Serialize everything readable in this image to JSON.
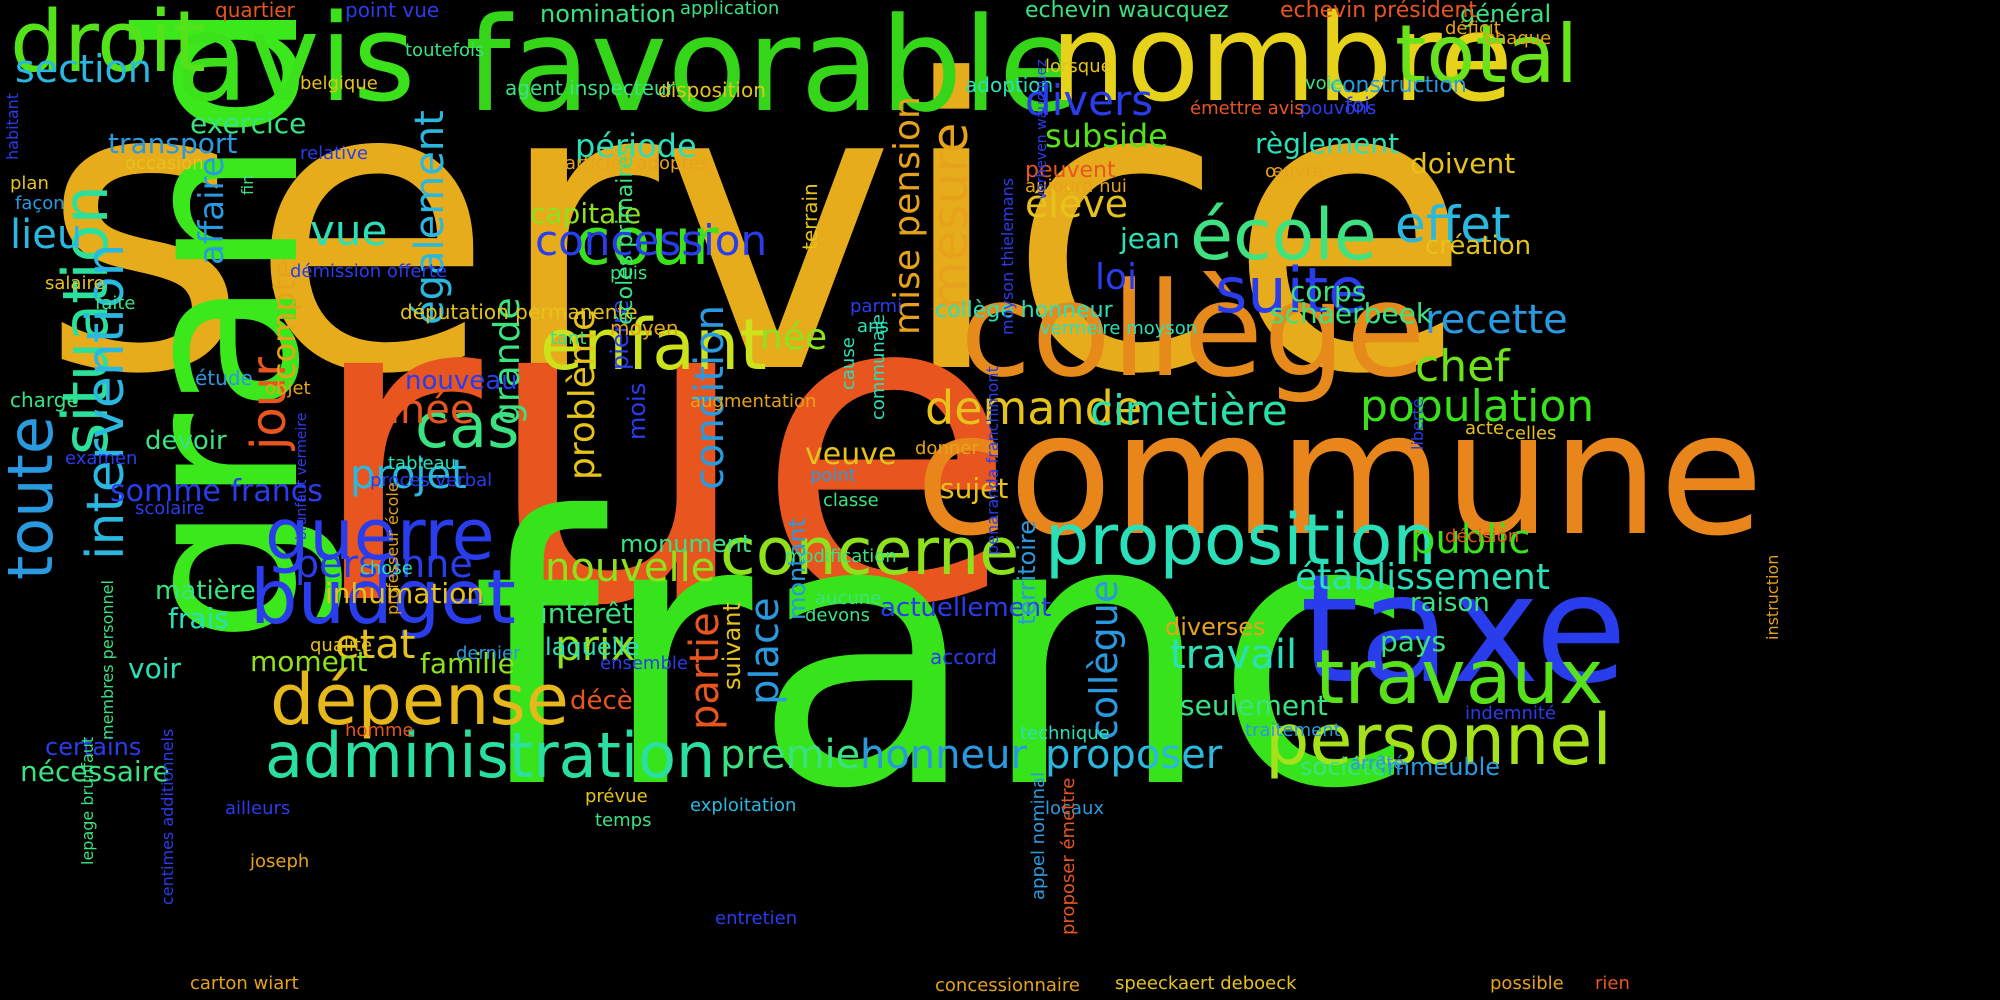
{
  "word_cloud": {
    "words": [
      {
        "text": "service",
        "color": "#e6ac1c"
      },
      {
        "text": "rue",
        "color": "#e8551f"
      },
      {
        "text": "franc",
        "color": "#37e31b"
      },
      {
        "text": "commune",
        "color": "#e8861b"
      },
      {
        "text": "grand",
        "color": "#3ae81c"
      },
      {
        "text": "favorable",
        "color": "#35d61a"
      },
      {
        "text": "avis",
        "color": "#3be21b"
      },
      {
        "text": "nombre",
        "color": "#e6d21b"
      },
      {
        "text": "collège",
        "color": "#e68a1b"
      },
      {
        "text": "taxe",
        "color": "#2a3ded"
      },
      {
        "text": "toute",
        "color": "#2a9ae0"
      },
      {
        "text": "droit",
        "color": "#54e21b"
      },
      {
        "text": "total",
        "color": "#67e21b"
      },
      {
        "text": "personnel",
        "color": "#a6e21b"
      },
      {
        "text": "travaux",
        "color": "#58e21b"
      },
      {
        "text": "proposition",
        "color": "#2ae0b8"
      },
      {
        "text": "administration",
        "color": "#2ae0a0"
      },
      {
        "text": "situation",
        "color": "#2ae09a"
      },
      {
        "text": "intervention",
        "color": "#2ab8e0"
      },
      {
        "text": "dépense",
        "color": "#e6b81b"
      },
      {
        "text": "budget",
        "color": "#2a3ded"
      },
      {
        "text": "enfant",
        "color": "#cce21b"
      },
      {
        "text": "concerne",
        "color": "#8ee21b"
      },
      {
        "text": "école",
        "color": "#3ee280"
      },
      {
        "text": "suite",
        "color": "#2a3ded"
      },
      {
        "text": "guerre",
        "color": "#2a3ded"
      },
      {
        "text": "cour",
        "color": "#3ae21b"
      },
      {
        "text": "cas",
        "color": "#3ae280"
      },
      {
        "text": "jour",
        "color": "#e8551f"
      },
      {
        "text": "concession",
        "color": "#2a3ded"
      },
      {
        "text": "mesure",
        "color": "#e6a21b"
      },
      {
        "text": "demande",
        "color": "#e6c21b"
      },
      {
        "text": "cimetière",
        "color": "#2ae0a8"
      },
      {
        "text": "population",
        "color": "#3ae21b"
      },
      {
        "text": "effet",
        "color": "#2ab8e0"
      },
      {
        "text": "recette",
        "color": "#2a9ae0"
      },
      {
        "text": "chef",
        "color": "#6ee21b"
      },
      {
        "text": "section",
        "color": "#2ab8e0"
      },
      {
        "text": "divers",
        "color": "#2a3ded"
      },
      {
        "text": "élève",
        "color": "#e6c21b"
      },
      {
        "text": "subside",
        "color": "#54e21b"
      },
      {
        "text": "également",
        "color": "#2ab8e0"
      },
      {
        "text": "affaire",
        "color": "#2a9ae0"
      },
      {
        "text": "lieu",
        "color": "#2ab8e0"
      },
      {
        "text": "vue",
        "color": "#2ae0b8"
      },
      {
        "text": "période",
        "color": "#2ae0b8"
      },
      {
        "text": "capitale",
        "color": "#8ee21b"
      },
      {
        "text": "mise pension",
        "color": "#e6a21b"
      },
      {
        "text": "année",
        "color": "#e8551f"
      },
      {
        "text": "projet",
        "color": "#2ab8e0"
      },
      {
        "text": "problème",
        "color": "#e6c21b"
      },
      {
        "text": "condition",
        "color": "#2a9ae0"
      },
      {
        "text": "grande",
        "color": "#3ae280"
      },
      {
        "text": "compte",
        "color": "#e6a21b"
      },
      {
        "text": "personne",
        "color": "#2a3ded"
      },
      {
        "text": "nouvelle",
        "color": "#8ee21b"
      },
      {
        "text": "prix",
        "color": "#8ee21b"
      },
      {
        "text": "etat",
        "color": "#e6c21b"
      },
      {
        "text": "place",
        "color": "#2a9ae0"
      },
      {
        "text": "partie",
        "color": "#e8551f"
      },
      {
        "text": "premier",
        "color": "#3ae280"
      },
      {
        "text": "honneur",
        "color": "#2a9ae0"
      },
      {
        "text": "proposer",
        "color": "#2ab8e0"
      },
      {
        "text": "travail",
        "color": "#2ae0b8"
      },
      {
        "text": "collègue",
        "color": "#2a9ae0"
      },
      {
        "text": "établissement",
        "color": "#2ae0b8"
      },
      {
        "text": "public",
        "color": "#3ae21b"
      },
      {
        "text": "somme francs",
        "color": "#2a3ded"
      },
      {
        "text": "loi",
        "color": "#2a3ded"
      },
      {
        "text": "jean",
        "color": "#2ae0b8"
      },
      {
        "text": "corps",
        "color": "#3ae280"
      },
      {
        "text": "schaerbeek",
        "color": "#3ae280"
      },
      {
        "text": "création",
        "color": "#e6c21b"
      },
      {
        "text": "doivent",
        "color": "#e6c21b"
      },
      {
        "text": "règlement",
        "color": "#2ae0b8"
      },
      {
        "text": "veuve",
        "color": "#e6c21b"
      },
      {
        "text": "sujet",
        "color": "#e6c21b"
      },
      {
        "text": "née",
        "color": "#8ee21b"
      },
      {
        "text": "inhumation",
        "color": "#e6c21b"
      },
      {
        "text": "famille",
        "color": "#8ee21b"
      },
      {
        "text": "moment",
        "color": "#8ee21b"
      },
      {
        "text": "matière",
        "color": "#3ae280"
      },
      {
        "text": "frais",
        "color": "#2ae0b8"
      },
      {
        "text": "voir",
        "color": "#2ae0b8"
      },
      {
        "text": "intérêt",
        "color": "#3ae280"
      },
      {
        "text": "exercice",
        "color": "#3ae280"
      },
      {
        "text": "transport",
        "color": "#2a9ae0"
      },
      {
        "text": "nouveau",
        "color": "#2a3ded"
      },
      {
        "text": "seulement",
        "color": "#3ae280"
      },
      {
        "text": "pays",
        "color": "#3ae280"
      },
      {
        "text": "raison",
        "color": "#3ae280"
      },
      {
        "text": "devoir",
        "color": "#3ae280"
      },
      {
        "text": "actuellement",
        "color": "#2a3ded"
      },
      {
        "text": "monument",
        "color": "#3ae280"
      },
      {
        "text": "nécessaire",
        "color": "#3ae280"
      },
      {
        "text": "certains",
        "color": "#2a3ded"
      },
      {
        "text": "diverses",
        "color": "#e6a21b"
      },
      {
        "text": "décè",
        "color": "#e8551f"
      },
      {
        "text": "suivant",
        "color": "#e6c21b"
      },
      {
        "text": "mois",
        "color": "#2a3ded"
      },
      {
        "text": "pierre",
        "color": "#2a3ded"
      },
      {
        "text": "montant",
        "color": "#2a9ae0"
      },
      {
        "text": "territoire",
        "color": "#2a9ae0"
      },
      {
        "text": "immeuble",
        "color": "#2a9ae0"
      },
      {
        "text": "société",
        "color": "#3ae280"
      },
      {
        "text": "construction",
        "color": "#2a9ae0"
      },
      {
        "text": "général",
        "color": "#3ae280"
      },
      {
        "text": "nomination",
        "color": "#3ae280"
      },
      {
        "text": "collège honneur",
        "color": "#2ae0b8"
      },
      {
        "text": "députation permanente",
        "color": "#e6c21b"
      },
      {
        "text": "articles adoptés",
        "color": "#e6a21b"
      },
      {
        "text": "agent inspecteur",
        "color": "#3ae280"
      },
      {
        "text": "disposition",
        "color": "#e6c21b"
      },
      {
        "text": "application",
        "color": "#3ae280"
      },
      {
        "text": "point vue",
        "color": "#2a3ded"
      },
      {
        "text": "quartier",
        "color": "#e8551f"
      },
      {
        "text": "echevin waucquez",
        "color": "#3ae280"
      },
      {
        "text": "echevin président",
        "color": "#e8551f"
      },
      {
        "text": "déficit",
        "color": "#e6a21b"
      },
      {
        "text": "chaque",
        "color": "#e6a21b"
      },
      {
        "text": "voie",
        "color": "#3ae280"
      },
      {
        "text": "foi",
        "color": "#2a3ded"
      },
      {
        "text": "pouvons",
        "color": "#2a3ded"
      },
      {
        "text": "émettre avis",
        "color": "#e8551f"
      },
      {
        "text": "adoption",
        "color": "#2ae0b8"
      },
      {
        "text": "lorsque",
        "color": "#e6c21b"
      },
      {
        "text": "toutefois",
        "color": "#3ae280"
      },
      {
        "text": "belgique",
        "color": "#e6c21b"
      },
      {
        "text": "habitant",
        "color": "#2a3ded"
      },
      {
        "text": "occasion",
        "color": "#e6c21b"
      },
      {
        "text": "relative",
        "color": "#2a3ded"
      },
      {
        "text": "fin",
        "color": "#3ae280"
      },
      {
        "text": "plan",
        "color": "#e6c21b"
      },
      {
        "text": "façon",
        "color": "#2a9ae0"
      },
      {
        "text": "salaire",
        "color": "#e6c21b"
      },
      {
        "text": "faite",
        "color": "#3ae280"
      },
      {
        "text": "démission offerte",
        "color": "#2a3ded"
      },
      {
        "text": "tant",
        "color": "#3ae280"
      },
      {
        "text": "moyen",
        "color": "#e6a21b"
      },
      {
        "text": "puis",
        "color": "#3ae280"
      },
      {
        "text": "parmi",
        "color": "#2a3ded"
      },
      {
        "text": "ans",
        "color": "#2ae0b8"
      },
      {
        "text": "peuvent",
        "color": "#e8551f"
      },
      {
        "text": "aujourd hui",
        "color": "#e6a21b"
      },
      {
        "text": "œuvre",
        "color": "#e6a21b"
      },
      {
        "text": "vermeire moyson",
        "color": "#2ae0b8"
      },
      {
        "text": "moyson thielemans",
        "color": "#2a3ded"
      },
      {
        "text": "verheven waucquez",
        "color": "#2a3ded"
      },
      {
        "text": "communale",
        "color": "#2ae0b8"
      },
      {
        "text": "cause",
        "color": "#2ae0b8"
      },
      {
        "text": "terrain",
        "color": "#e6c21b"
      },
      {
        "text": "étude",
        "color": "#2a9ae0"
      },
      {
        "text": "objet",
        "color": "#e6a21b"
      },
      {
        "text": "charge",
        "color": "#3ae280"
      },
      {
        "text": "examen",
        "color": "#2a3ded"
      },
      {
        "text": "scolaire",
        "color": "#2a3ded"
      },
      {
        "text": "tableau",
        "color": "#2ae0b8"
      },
      {
        "text": "proces verbal",
        "color": "#2a3ded"
      },
      {
        "text": "chose",
        "color": "#2ae0b8"
      },
      {
        "text": "augmentation",
        "color": "#e6a21b"
      },
      {
        "text": "point",
        "color": "#2a9ae0"
      },
      {
        "text": "classe",
        "color": "#3ae280"
      },
      {
        "text": "modification",
        "color": "#3ae280"
      },
      {
        "text": "aucune",
        "color": "#3ae280"
      },
      {
        "text": "devons",
        "color": "#3ae280"
      },
      {
        "text": "donner",
        "color": "#e6a21b"
      },
      {
        "text": "acte",
        "color": "#e6c21b"
      },
      {
        "text": "celles",
        "color": "#e6c21b"
      },
      {
        "text": "décision",
        "color": "#e8551f"
      },
      {
        "text": "liberté",
        "color": "#2a3ded"
      },
      {
        "text": "instruction",
        "color": "#e6a21b"
      },
      {
        "text": "indemnité",
        "color": "#2a3ded"
      },
      {
        "text": "traitement",
        "color": "#2a9ae0"
      },
      {
        "text": "arrêté",
        "color": "#2a9ae0"
      },
      {
        "text": "penaranda franchimont",
        "color": "#2a3ded"
      },
      {
        "text": "accord",
        "color": "#2a3ded"
      },
      {
        "text": "technique",
        "color": "#2ae0b8"
      },
      {
        "text": "locaux",
        "color": "#2a9ae0"
      },
      {
        "text": "appel nominal",
        "color": "#2a9ae0"
      },
      {
        "text": "proposer émettre",
        "color": "#e8551f"
      },
      {
        "text": "possible",
        "color": "#e6a21b"
      },
      {
        "text": "rien",
        "color": "#e8551f"
      },
      {
        "text": "speeckaert deboeck",
        "color": "#e6c21b"
      },
      {
        "text": "concessionnaire",
        "color": "#e6a21b"
      },
      {
        "text": "entretien",
        "color": "#2a3ded"
      },
      {
        "text": "exploitation",
        "color": "#2ab8e0"
      },
      {
        "text": "prévue",
        "color": "#e6c21b"
      },
      {
        "text": "temps",
        "color": "#3ae280"
      },
      {
        "text": "ensemble",
        "color": "#2a3ded"
      },
      {
        "text": "laquelle",
        "color": "#2ae0b8"
      },
      {
        "text": "dernier",
        "color": "#2a9ae0"
      },
      {
        "text": "qualité",
        "color": "#e6c21b"
      },
      {
        "text": "homme",
        "color": "#e8551f"
      },
      {
        "text": "ailleurs",
        "color": "#2a3ded"
      },
      {
        "text": "joseph",
        "color": "#e6a21b"
      },
      {
        "text": "carton wiart",
        "color": "#e6a21b"
      },
      {
        "text": "lepage brunfaut",
        "color": "#3ae280"
      },
      {
        "text": "membres personnel",
        "color": "#3ae280"
      },
      {
        "text": "centimes additionnels",
        "color": "#2a3ded"
      },
      {
        "text": "professeur école",
        "color": "#e6a21b"
      },
      {
        "text": "brunfaut vermeire",
        "color": "#2a3ded"
      },
      {
        "text": "écoles primaires",
        "color": "#3ae280"
      }
    ]
  }
}
